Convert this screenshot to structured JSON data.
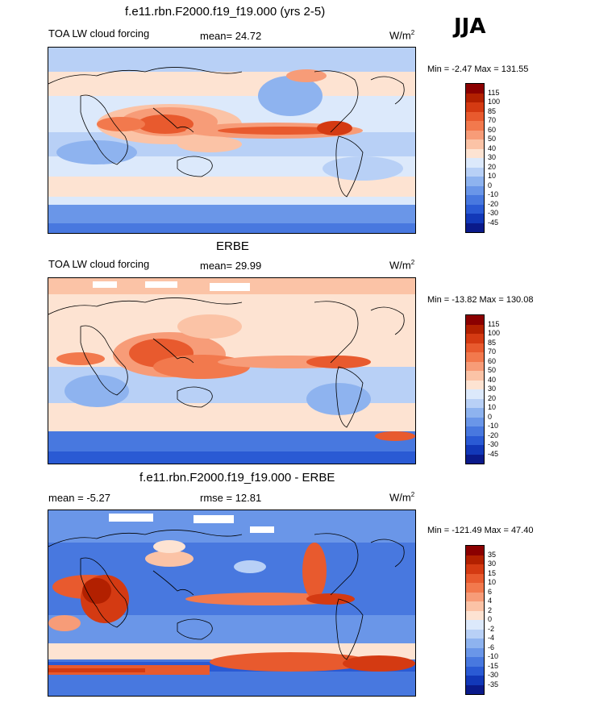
{
  "season": "JJA",
  "panels": [
    {
      "title": "f.e11.rbn.F2000.f19_f19.000 (yrs 2-5)",
      "left_label": "TOA LW cloud forcing",
      "mid_label": "mean=  24.72",
      "unit": "W/m",
      "unit_sup": "2",
      "minmax": "Min =  -2.47 Max = 131.55",
      "colorbar": {
        "levels": [
          "115",
          "100",
          "85",
          "70",
          "60",
          "50",
          "40",
          "30",
          "20",
          "10",
          "0",
          "-10",
          "-20",
          "-30",
          "-45"
        ],
        "colors": [
          "#8b0000",
          "#b22000",
          "#d43a12",
          "#e85a2e",
          "#f2794d",
          "#f79c78",
          "#fbc3a6",
          "#fde3d2",
          "#dce9fb",
          "#b8d0f6",
          "#8eb3ef",
          "#6a96e8",
          "#4878df",
          "#2a5ad4",
          "#1238b8",
          "#0a1a8a"
        ]
      }
    },
    {
      "title": "ERBE",
      "left_label": "TOA LW cloud forcing",
      "mid_label": "mean=  29.99",
      "unit": "W/m",
      "unit_sup": "2",
      "minmax": "Min = -13.82 Max = 130.08",
      "colorbar": {
        "levels": [
          "115",
          "100",
          "85",
          "70",
          "60",
          "50",
          "40",
          "30",
          "20",
          "10",
          "0",
          "-10",
          "-20",
          "-30",
          "-45"
        ],
        "colors": [
          "#8b0000",
          "#b22000",
          "#d43a12",
          "#e85a2e",
          "#f2794d",
          "#f79c78",
          "#fbc3a6",
          "#fde3d2",
          "#dce9fb",
          "#b8d0f6",
          "#8eb3ef",
          "#6a96e8",
          "#4878df",
          "#2a5ad4",
          "#1238b8",
          "#0a1a8a"
        ]
      }
    },
    {
      "title": "f.e11.rbn.F2000.f19_f19.000 - ERBE",
      "left_label": "mean =  -5.27",
      "mid_label": "rmse =  12.81",
      "unit": "W/m",
      "unit_sup": "2",
      "minmax": "Min = -121.49 Max =  47.40",
      "colorbar": {
        "levels": [
          "35",
          "30",
          "15",
          "10",
          "6",
          "4",
          "2",
          "0",
          "-2",
          "-4",
          "-6",
          "-10",
          "-15",
          "-30",
          "-35"
        ],
        "colors": [
          "#8b0000",
          "#b22000",
          "#d43a12",
          "#e85a2e",
          "#f2794d",
          "#f79c78",
          "#fbc3a6",
          "#fde3d2",
          "#dce9fb",
          "#b8d0f6",
          "#8eb3ef",
          "#6a96e8",
          "#4878df",
          "#2a5ad4",
          "#1238b8",
          "#0a1a8a"
        ]
      }
    }
  ]
}
